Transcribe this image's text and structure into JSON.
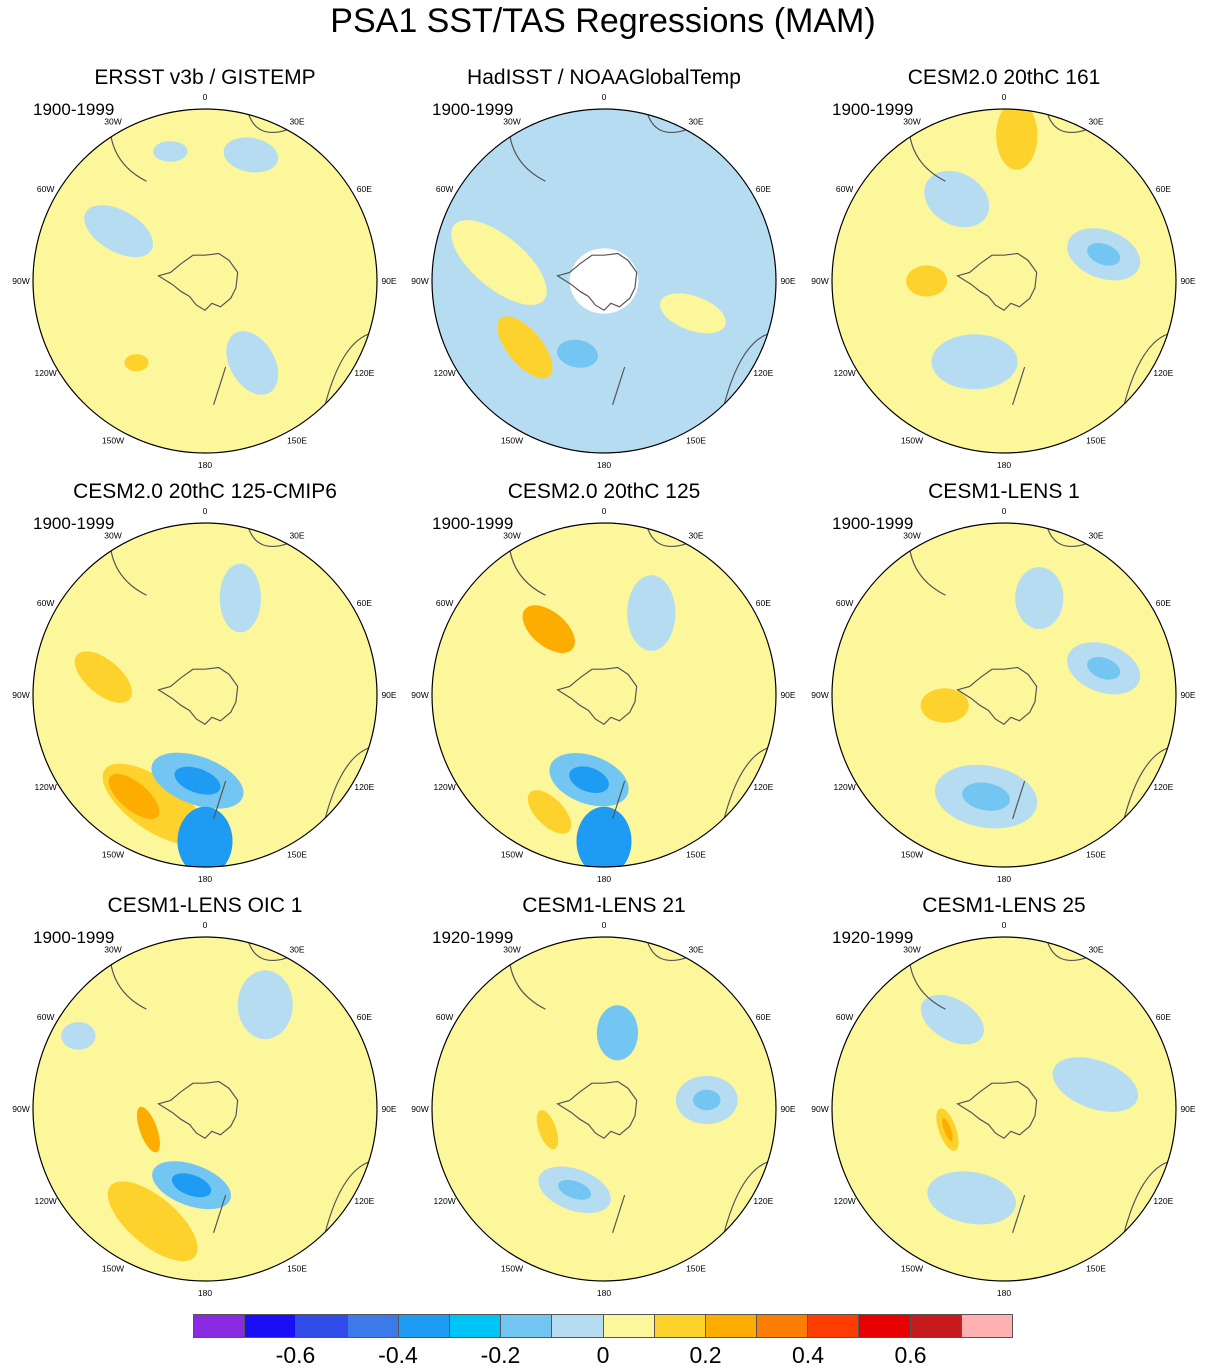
{
  "figure": {
    "title": "PSA1 SST/TAS Regressions (MAM)"
  },
  "panels": [
    {
      "title": "ERSST v3b / GISTEMP",
      "period": "1900-1999",
      "base": "#fdf79c",
      "anoms": [
        {
          "r": 0.58,
          "a": 300,
          "rx": 0.22,
          "ry": 0.12,
          "rot": 30,
          "color": "#b6dcf2"
        },
        {
          "r": 0.55,
          "a": 150,
          "rx": 0.2,
          "ry": 0.13,
          "rot": 60,
          "color": "#b6dcf2"
        },
        {
          "r": 0.78,
          "a": 20,
          "rx": 0.16,
          "ry": 0.1,
          "rot": 10,
          "color": "#b6dcf2"
        },
        {
          "r": 0.62,
          "a": 220,
          "rx": 0.07,
          "ry": 0.05,
          "rot": 0,
          "color": "#fdd22d"
        },
        {
          "r": 0.78,
          "a": 345,
          "rx": 0.1,
          "ry": 0.06,
          "rot": 0,
          "color": "#b6dcf2"
        }
      ]
    },
    {
      "title": "HadISST / NOAAGlobalTemp",
      "period": "1900-1999",
      "base": "#b6dcf2",
      "anoms": [
        {
          "r": 0.62,
          "a": 280,
          "rx": 0.34,
          "ry": 0.15,
          "rot": 40,
          "color": "#fdf79c"
        },
        {
          "r": 0.6,
          "a": 230,
          "rx": 0.22,
          "ry": 0.1,
          "rot": 50,
          "color": "#fdd22d"
        },
        {
          "r": 0.55,
          "a": 110,
          "rx": 0.2,
          "ry": 0.1,
          "rot": 20,
          "color": "#fdf79c"
        },
        {
          "r": 0.45,
          "a": 200,
          "rx": 0.12,
          "ry": 0.08,
          "rot": 10,
          "color": "#74c6f2"
        },
        {
          "r": 0.0,
          "a": 0,
          "rx": 0.2,
          "ry": 0.19,
          "rot": 0,
          "color": "#ffffff"
        }
      ]
    },
    {
      "title": "CESM2.0 20thC 161",
      "period": "1900-1999",
      "base": "#fdf79c",
      "anoms": [
        {
          "r": 0.6,
          "a": 75,
          "rx": 0.22,
          "ry": 0.14,
          "rot": 20,
          "color": "#b6dcf2"
        },
        {
          "r": 0.6,
          "a": 75,
          "rx": 0.1,
          "ry": 0.06,
          "rot": 20,
          "color": "#74c6f2"
        },
        {
          "r": 0.5,
          "a": 200,
          "rx": 0.25,
          "ry": 0.16,
          "rot": 0,
          "color": "#b6dcf2"
        },
        {
          "r": 0.55,
          "a": 330,
          "rx": 0.2,
          "ry": 0.15,
          "rot": 30,
          "color": "#b6dcf2"
        },
        {
          "r": 0.45,
          "a": 270,
          "rx": 0.12,
          "ry": 0.09,
          "rot": 0,
          "color": "#fdd22d"
        },
        {
          "r": 0.85,
          "a": 5,
          "rx": 0.12,
          "ry": 0.2,
          "rot": 0,
          "color": "#fdd22d"
        }
      ]
    },
    {
      "title": "CESM2.0 20thC 125-CMIP6",
      "period": "1900-1999",
      "base": "#fdf79c",
      "anoms": [
        {
          "r": 0.7,
          "a": 205,
          "rx": 0.35,
          "ry": 0.15,
          "rot": 35,
          "color": "#fdd22d"
        },
        {
          "r": 0.72,
          "a": 215,
          "rx": 0.18,
          "ry": 0.08,
          "rot": 40,
          "color": "#fdac00"
        },
        {
          "r": 0.5,
          "a": 185,
          "rx": 0.28,
          "ry": 0.14,
          "rot": 20,
          "color": "#74c6f2"
        },
        {
          "r": 0.5,
          "a": 185,
          "rx": 0.14,
          "ry": 0.07,
          "rot": 20,
          "color": "#1e9bf3"
        },
        {
          "r": 0.85,
          "a": 180,
          "rx": 0.16,
          "ry": 0.2,
          "rot": 0,
          "color": "#1e9bf3"
        },
        {
          "r": 0.6,
          "a": 280,
          "rx": 0.2,
          "ry": 0.1,
          "rot": 40,
          "color": "#fdd22d"
        },
        {
          "r": 0.6,
          "a": 20,
          "rx": 0.12,
          "ry": 0.2,
          "rot": 0,
          "color": "#b6dcf2"
        }
      ]
    },
    {
      "title": "CESM2.0 20thC 125",
      "period": "1900-1999",
      "base": "#fdf79c",
      "anoms": [
        {
          "r": 0.5,
          "a": 190,
          "rx": 0.24,
          "ry": 0.14,
          "rot": 20,
          "color": "#74c6f2"
        },
        {
          "r": 0.5,
          "a": 190,
          "rx": 0.12,
          "ry": 0.07,
          "rot": 20,
          "color": "#1e9bf3"
        },
        {
          "r": 0.75,
          "a": 205,
          "rx": 0.16,
          "ry": 0.08,
          "rot": 45,
          "color": "#fdd22d"
        },
        {
          "r": 0.85,
          "a": 180,
          "rx": 0.16,
          "ry": 0.2,
          "rot": 0,
          "color": "#1e9bf3"
        },
        {
          "r": 0.5,
          "a": 320,
          "rx": 0.18,
          "ry": 0.1,
          "rot": 40,
          "color": "#fdac00"
        },
        {
          "r": 0.55,
          "a": 30,
          "rx": 0.14,
          "ry": 0.22,
          "rot": 0,
          "color": "#b6dcf2"
        }
      ]
    },
    {
      "title": "CESM1-LENS 1",
      "period": "1900-1999",
      "base": "#fdf79c",
      "anoms": [
        {
          "r": 0.6,
          "a": 75,
          "rx": 0.22,
          "ry": 0.14,
          "rot": 20,
          "color": "#b6dcf2"
        },
        {
          "r": 0.6,
          "a": 75,
          "rx": 0.1,
          "ry": 0.06,
          "rot": 20,
          "color": "#74c6f2"
        },
        {
          "r": 0.6,
          "a": 190,
          "rx": 0.3,
          "ry": 0.18,
          "rot": 10,
          "color": "#b6dcf2"
        },
        {
          "r": 0.6,
          "a": 190,
          "rx": 0.14,
          "ry": 0.08,
          "rot": 10,
          "color": "#74c6f2"
        },
        {
          "r": 0.35,
          "a": 260,
          "rx": 0.14,
          "ry": 0.1,
          "rot": 0,
          "color": "#fdd22d"
        },
        {
          "r": 0.6,
          "a": 20,
          "rx": 0.14,
          "ry": 0.18,
          "rot": 0,
          "color": "#b6dcf2"
        }
      ]
    },
    {
      "title": "CESM1-LENS OIC 1",
      "period": "1900-1999",
      "base": "#fdf79c",
      "anoms": [
        {
          "r": 0.72,
          "a": 205,
          "rx": 0.32,
          "ry": 0.14,
          "rot": 40,
          "color": "#fdd22d"
        },
        {
          "r": 0.45,
          "a": 190,
          "rx": 0.24,
          "ry": 0.12,
          "rot": 20,
          "color": "#74c6f2"
        },
        {
          "r": 0.45,
          "a": 190,
          "rx": 0.12,
          "ry": 0.06,
          "rot": 20,
          "color": "#1e9bf3"
        },
        {
          "r": 0.35,
          "a": 250,
          "rx": 0.05,
          "ry": 0.14,
          "rot": -20,
          "color": "#fdac00"
        },
        {
          "r": 0.7,
          "a": 30,
          "rx": 0.16,
          "ry": 0.2,
          "rot": 0,
          "color": "#b6dcf2"
        },
        {
          "r": 0.85,
          "a": 300,
          "rx": 0.1,
          "ry": 0.08,
          "rot": 0,
          "color": "#b6dcf2"
        }
      ]
    },
    {
      "title": "CESM1-LENS 21",
      "period": "1920-1999",
      "base": "#fdf79c",
      "anoms": [
        {
          "r": 0.6,
          "a": 85,
          "rx": 0.18,
          "ry": 0.14,
          "rot": 0,
          "color": "#b6dcf2"
        },
        {
          "r": 0.6,
          "a": 85,
          "rx": 0.08,
          "ry": 0.06,
          "rot": 0,
          "color": "#74c6f2"
        },
        {
          "r": 0.5,
          "a": 200,
          "rx": 0.22,
          "ry": 0.12,
          "rot": 20,
          "color": "#b6dcf2"
        },
        {
          "r": 0.5,
          "a": 200,
          "rx": 0.1,
          "ry": 0.05,
          "rot": 20,
          "color": "#74c6f2"
        },
        {
          "r": 0.45,
          "a": 10,
          "rx": 0.12,
          "ry": 0.16,
          "rot": 0,
          "color": "#74c6f2"
        },
        {
          "r": 0.35,
          "a": 250,
          "rx": 0.05,
          "ry": 0.12,
          "rot": -20,
          "color": "#fdd22d"
        }
      ]
    },
    {
      "title": "CESM1-LENS 25",
      "period": "1920-1999",
      "base": "#fdf79c",
      "anoms": [
        {
          "r": 0.55,
          "a": 75,
          "rx": 0.26,
          "ry": 0.14,
          "rot": 20,
          "color": "#b6dcf2"
        },
        {
          "r": 0.55,
          "a": 200,
          "rx": 0.26,
          "ry": 0.15,
          "rot": 10,
          "color": "#b6dcf2"
        },
        {
          "r": 0.6,
          "a": 330,
          "rx": 0.2,
          "ry": 0.12,
          "rot": 30,
          "color": "#b6dcf2"
        },
        {
          "r": 0.35,
          "a": 250,
          "rx": 0.05,
          "ry": 0.13,
          "rot": -20,
          "color": "#fdd22d"
        },
        {
          "r": 0.35,
          "a": 250,
          "rx": 0.02,
          "ry": 0.07,
          "rot": -20,
          "color": "#fdac00"
        }
      ]
    }
  ],
  "lon_labels": [
    "0",
    "30E",
    "60E",
    "90E",
    "120E",
    "150E",
    "180",
    "150W",
    "120W",
    "90W",
    "60W",
    "30W"
  ],
  "colorbar": {
    "colors": [
      "#8a2be2",
      "#1a0ef6",
      "#2f4ce8",
      "#3b7ae8",
      "#1e9bf3",
      "#00c3f5",
      "#74c6f2",
      "#b6dcf2",
      "#fdf79c",
      "#fdd22d",
      "#fdac00",
      "#fd7d00",
      "#fd3c00",
      "#e80000",
      "#c71b1b",
      "#ffb1b1"
    ],
    "ticks": [
      "-0.6",
      "-0.4",
      "-0.2",
      "0",
      "0.2",
      "0.4",
      "0.6"
    ]
  }
}
